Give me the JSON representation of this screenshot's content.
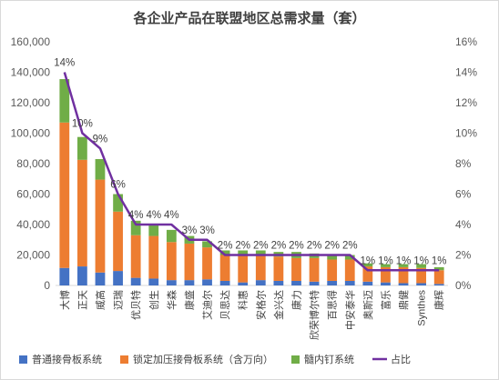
{
  "chart_data": {
    "type": "bar",
    "stacked": true,
    "title": "各企业产品在联盟地区总需求量（套）",
    "categories": [
      "大博",
      "正天",
      "威高",
      "迈瑞",
      "优贝特",
      "创生",
      "华森",
      "康盛",
      "艾迪尔",
      "贝思达",
      "科惠",
      "安格尔",
      "金兴达",
      "康力",
      "欣荣博尔特",
      "百思得",
      "中安泰华",
      "奥斯迈",
      "富乐",
      "鼎健",
      "Synthes",
      "康辉"
    ],
    "series": [
      {
        "name": "普通接骨板系统",
        "color": "#4472C4",
        "values": [
          11500,
          12500,
          8500,
          9500,
          5000,
          4500,
          3500,
          3500,
          4000,
          3000,
          2000,
          3500,
          3000,
          3000,
          2500,
          3000,
          3000,
          2500,
          2000,
          1500,
          1500,
          1000
        ]
      },
      {
        "name": "锁定加压接骨板系统（含万向）",
        "color": "#ED7D31",
        "values": [
          95500,
          70000,
          61000,
          39000,
          28000,
          28000,
          25000,
          24000,
          21000,
          17000,
          18000,
          16000,
          16000,
          15000,
          15500,
          14000,
          14000,
          10000,
          10000,
          10500,
          10000,
          9000
        ]
      },
      {
        "name": "髓内钉系统",
        "color": "#70AD47",
        "values": [
          28500,
          15000,
          13500,
          11500,
          9500,
          7500,
          8000,
          5000,
          4000,
          3000,
          3000,
          3500,
          3000,
          4000,
          3000,
          3500,
          3000,
          2000,
          2000,
          2000,
          2500,
          2000
        ]
      }
    ],
    "line_series": {
      "name": "占比",
      "color": "#7030A0",
      "axis": "secondary",
      "values": [
        14,
        10,
        9,
        6,
        4,
        4,
        4,
        3,
        3,
        2,
        2,
        2,
        2,
        2,
        2,
        2,
        2,
        1,
        1,
        1,
        1,
        1
      ]
    },
    "data_labels": [
      "14%",
      "10%",
      "9%",
      "6%",
      "4%",
      "4%",
      "4%",
      "3%",
      "3%",
      "2%",
      "2%",
      "2%",
      "2%",
      "2%",
      "2%",
      "2%",
      "2%",
      "1%",
      "1%",
      "1%",
      "1%",
      "1%"
    ],
    "y_ticks": [
      "0",
      "20,000",
      "40,000",
      "60,000",
      "80,000",
      "100,000",
      "120,000",
      "140,000",
      "160,000"
    ],
    "y2_ticks": [
      "0%",
      "2%",
      "4%",
      "6%",
      "8%",
      "10%",
      "12%",
      "14%",
      "16%"
    ],
    "ylim": [
      0,
      160000
    ],
    "y2lim": [
      0,
      16
    ],
    "grid": false,
    "legend_position": "bottom"
  }
}
